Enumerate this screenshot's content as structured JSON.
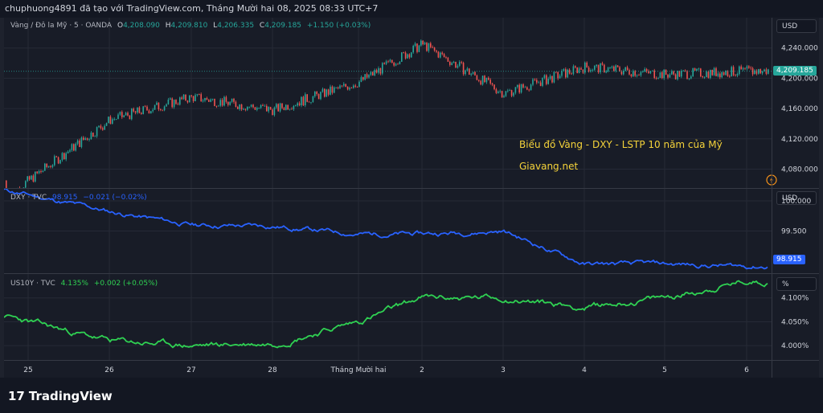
{
  "header": {
    "text": "chuphuong4891 đã tạo với TradingView.com, Tháng Mười hai 08, 2025 08:33 UTC+7"
  },
  "colors": {
    "up": "#26a69a",
    "down": "#ef5350",
    "dxy": "#2962ff",
    "us10y": "#2fd152",
    "note": "#f5d33a",
    "bg": "#181c27"
  },
  "gold": {
    "name": "Vàng / Đô la Mỹ · 5 · OANDA",
    "o_label": "O",
    "o": "4,208.090",
    "h_label": "H",
    "h": "4,209.810",
    "l_label": "L",
    "l": "4,206.335",
    "c_label": "C",
    "c": "4,209.185",
    "change": "+1.150 (+0.03%)",
    "unit": "USD",
    "price_tag": "4,209.185"
  },
  "dxy": {
    "name": "DXY · TVC",
    "value": "98.915",
    "change": "−0.021 (−0.02%)",
    "unit": "USD",
    "price_tag": "98.915"
  },
  "us10y": {
    "name": "US10Y · TVC",
    "value": "4.135%",
    "change": "+0.002 (+0.05%)",
    "unit": "%"
  },
  "annotation": {
    "line1": "Biểu đồ Vàng - DXY - LSTP 10 năm của Mỹ",
    "line2": "Giavang.net"
  },
  "chart_data": [
    {
      "type": "line",
      "title": "Vàng / Đô la Mỹ · 5 · OANDA",
      "style": "candlestick",
      "x": [
        "25",
        "26",
        "27",
        "28",
        "Tháng Mười hai",
        "2",
        "3",
        "4",
        "5",
        "6"
      ],
      "series": [
        {
          "name": "Vàng / Đô la Mỹ",
          "values": [
            4065,
            4145,
            4175,
            4158,
            4195,
            4245,
            4180,
            4215,
            4205,
            4209.185
          ]
        }
      ],
      "y_ticks": [
        "4,080.000",
        "4,120.000",
        "4,160.000",
        "4,200.000",
        "4,240.000"
      ],
      "ylim": [
        4055,
        4280
      ]
    },
    {
      "type": "line",
      "title": "DXY · TVC",
      "x": [
        "25",
        "26",
        "27",
        "28",
        "Tháng Mười hai",
        "2",
        "3",
        "4",
        "5",
        "6"
      ],
      "series": [
        {
          "name": "DXY",
          "values": [
            100.1,
            99.82,
            99.6,
            99.58,
            99.45,
            99.45,
            99.5,
            98.95,
            98.95,
            98.915
          ]
        }
      ],
      "y_ticks": [
        "99.500",
        "100.000"
      ],
      "ylim": [
        98.8,
        100.2
      ]
    },
    {
      "type": "line",
      "title": "US10Y · TVC",
      "x": [
        "25",
        "26",
        "27",
        "28",
        "Tháng Mười hai",
        "2",
        "3",
        "4",
        "5",
        "6"
      ],
      "series": [
        {
          "name": "US10Y",
          "values": [
            4.05,
            4.01,
            4.0,
            4.005,
            4.05,
            4.1,
            4.1,
            4.08,
            4.1,
            4.135
          ]
        }
      ],
      "y_ticks": [
        "4.000%",
        "4.050%",
        "4.100%"
      ],
      "ylim": [
        3.97,
        4.15
      ]
    }
  ],
  "x_axis": {
    "labels": [
      "25",
      "26",
      "27",
      "28",
      "Tháng Mười hai",
      "2",
      "3",
      "4",
      "5",
      "6"
    ]
  },
  "brand": {
    "logo": "TradingView",
    "logo_mark": "17"
  }
}
